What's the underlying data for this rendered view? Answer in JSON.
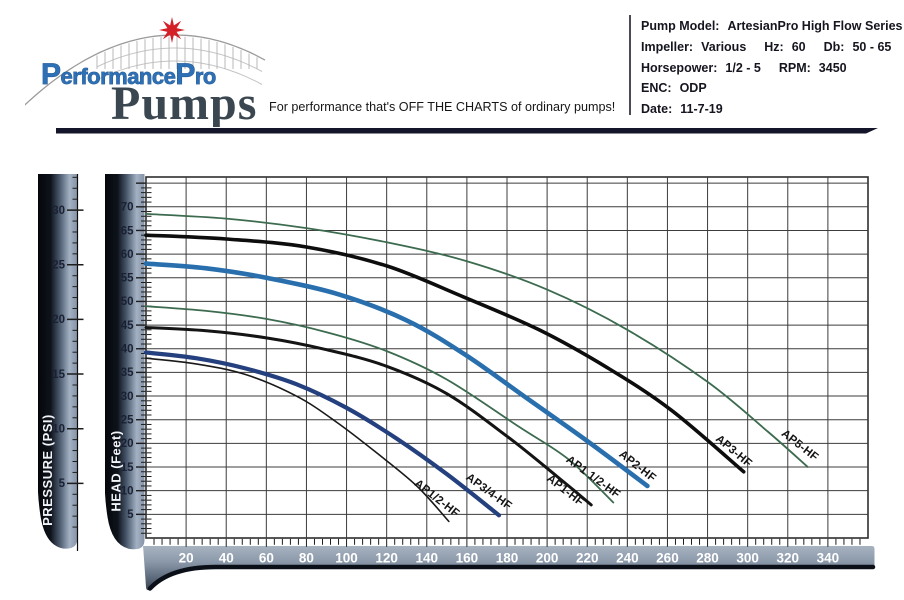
{
  "header": {
    "logo": {
      "brand": "PerformancePro",
      "word": "Pumps"
    },
    "tagline": "For performance that's OFF THE CHARTS of ordinary pumps!",
    "info_lines": [
      [
        {
          "label": "Pump Model:",
          "value": "ArtesianPro High Flow Series"
        }
      ],
      [
        {
          "label": "Impeller:",
          "value": "Various"
        },
        {
          "label": "Hz:",
          "value": "60"
        },
        {
          "label": "Db:",
          "value": "50 - 65"
        }
      ],
      [
        {
          "label": "Horsepower:",
          "value": "1/2 - 5"
        },
        {
          "label": "RPM:",
          "value": "3450"
        }
      ],
      [
        {
          "label": "ENC:",
          "value": "ODP"
        }
      ],
      [
        {
          "label": "Date:",
          "value": "11-7-19"
        }
      ]
    ]
  },
  "colors": {
    "logo_blue": "#2e70b5",
    "logo_dark": "#3a4750",
    "star_red": "#d42027",
    "divider": "#14142a",
    "grid": "#3c3c3c",
    "plot_border": "#2e2e2e",
    "tick": "#1d1d1d",
    "axis_number": "#1b2135",
    "band_number": "#ffffff",
    "axis_title": "#f2f4f8",
    "curve_label": "#141414",
    "bar_gradient": [
      "#04060a",
      "#0e131b",
      "#4b5a6e",
      "#a3b1c3",
      "#8693a8"
    ],
    "band_gradient": [
      "#a8b3c1",
      "#8b99aa",
      "#5f6d7e",
      "#39434f"
    ],
    "band_rim": "#0a0f18"
  },
  "chart_data": {
    "type": "line",
    "title": "",
    "xlabel": "",
    "ylabel": "HEAD (Feet)",
    "x_axis": {
      "ticks": [
        20,
        40,
        60,
        80,
        100,
        120,
        140,
        160,
        180,
        200,
        220,
        240,
        260,
        280,
        300,
        320,
        340
      ],
      "minor_step": 4,
      "xlim": [
        0,
        360
      ]
    },
    "head_axis": {
      "title": "HEAD (Feet)",
      "ticks": [
        70,
        65,
        60,
        55,
        50,
        45,
        40,
        35,
        30,
        25,
        20,
        15,
        10,
        5
      ],
      "major_step": 5,
      "ylim": [
        0,
        76.3
      ]
    },
    "pressure_axis": {
      "title": "PRESSURE (PSI)",
      "ticks": [
        30,
        25,
        20,
        15,
        10,
        5
      ],
      "psi_to_feet": 2.31
    },
    "grid": "on",
    "series": [
      {
        "name": "AP1/2-HF",
        "color": "#1a1a1a",
        "width": 1.6,
        "points": [
          [
            0,
            38
          ],
          [
            25,
            36.8
          ],
          [
            50,
            34.5
          ],
          [
            75,
            30
          ],
          [
            95,
            24.5
          ],
          [
            115,
            18
          ],
          [
            135,
            11
          ],
          [
            151,
            3.5
          ]
        ],
        "label": {
          "x": 144,
          "y": 7.8,
          "angle": 38
        }
      },
      {
        "name": "AP3/4-HF",
        "color": "#24407e",
        "width": 4.2,
        "points": [
          [
            0,
            39.2
          ],
          [
            25,
            38
          ],
          [
            50,
            35.8
          ],
          [
            75,
            32.5
          ],
          [
            100,
            27.5
          ],
          [
            125,
            21
          ],
          [
            150,
            13.5
          ],
          [
            176,
            4.8
          ]
        ],
        "label": {
          "x": 170,
          "y": 9.2,
          "angle": 36
        }
      },
      {
        "name": "AP1-HF",
        "color": "#141414",
        "width": 3.0,
        "points": [
          [
            0,
            44.5
          ],
          [
            30,
            43.8
          ],
          [
            60,
            42.3
          ],
          [
            90,
            39.8
          ],
          [
            120,
            36.3
          ],
          [
            150,
            30.5
          ],
          [
            180,
            21.5
          ],
          [
            205,
            13
          ],
          [
            222,
            7
          ]
        ],
        "label": {
          "x": 208,
          "y": 9.5,
          "angle": 38
        }
      },
      {
        "name": "AP1 1/2-HF",
        "color": "#3c6b4f",
        "width": 1.8,
        "points": [
          [
            0,
            49
          ],
          [
            30,
            48
          ],
          [
            60,
            46.3
          ],
          [
            90,
            43.5
          ],
          [
            120,
            39.5
          ],
          [
            150,
            33.5
          ],
          [
            186,
            23.5
          ],
          [
            211,
            16.5
          ],
          [
            233,
            7.5
          ]
        ],
        "label": {
          "x": 222,
          "y": 12.3,
          "angle": 36
        }
      },
      {
        "name": "AP2-HF",
        "color": "#2a6fad",
        "width": 4.6,
        "points": [
          [
            0,
            58
          ],
          [
            30,
            57
          ],
          [
            60,
            55
          ],
          [
            96,
            51.5
          ],
          [
            130,
            46
          ],
          [
            160,
            38.5
          ],
          [
            190,
            29.5
          ],
          [
            220,
            20.5
          ],
          [
            250,
            11
          ]
        ],
        "label": {
          "x": 244,
          "y": 14.6,
          "angle": 38
        }
      },
      {
        "name": "AP3-HF",
        "color": "#0d0d0d",
        "width": 3.6,
        "points": [
          [
            0,
            64
          ],
          [
            40,
            63.2
          ],
          [
            80,
            61.5
          ],
          [
            120,
            57.5
          ],
          [
            158,
            51
          ],
          [
            196,
            44
          ],
          [
            230,
            36
          ],
          [
            262,
            27
          ],
          [
            298,
            14
          ]
        ],
        "label": {
          "x": 292,
          "y": 17.8,
          "angle": 40
        }
      },
      {
        "name": "AP5-HF",
        "color": "#3c6b4f",
        "width": 1.8,
        "points": [
          [
            0,
            68.5
          ],
          [
            40,
            67.5
          ],
          [
            80,
            65.5
          ],
          [
            120,
            62.5
          ],
          [
            160,
            58.5
          ],
          [
            200,
            52.5
          ],
          [
            240,
            44
          ],
          [
            280,
            33
          ],
          [
            310,
            22.5
          ],
          [
            330,
            15
          ]
        ],
        "label": {
          "x": 325,
          "y": 19,
          "angle": 38
        }
      }
    ]
  }
}
